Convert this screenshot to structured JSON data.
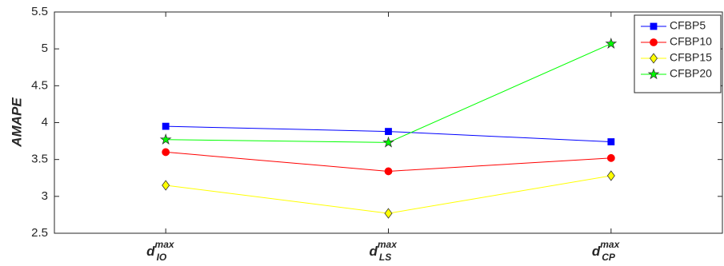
{
  "chart_data": {
    "type": "line",
    "ylabel": "AMAPE",
    "categories": [
      {
        "base": "d",
        "sup": "max",
        "sub": "IO"
      },
      {
        "base": "d",
        "sup": "max",
        "sub": "LS"
      },
      {
        "base": "d",
        "sup": "max",
        "sub": "CP"
      }
    ],
    "series": [
      {
        "name": "CFBP5",
        "color": "#0000ff",
        "marker": "square",
        "values": [
          3.95,
          3.88,
          3.74
        ]
      },
      {
        "name": "CFBP10",
        "color": "#ff0000",
        "marker": "circle",
        "values": [
          3.6,
          3.34,
          3.52
        ]
      },
      {
        "name": "CFBP15",
        "color": "#ffff00",
        "marker": "diamond",
        "values": [
          3.15,
          2.77,
          3.28
        ]
      },
      {
        "name": "CFBP20",
        "color": "#00ff00",
        "marker": "star",
        "values": [
          3.77,
          3.73,
          5.07
        ]
      }
    ],
    "ylim": [
      2.5,
      5.5
    ],
    "yticks": [
      2.5,
      3,
      3.5,
      4,
      4.5,
      5,
      5.5
    ],
    "grid": false,
    "legend": "northeast"
  }
}
